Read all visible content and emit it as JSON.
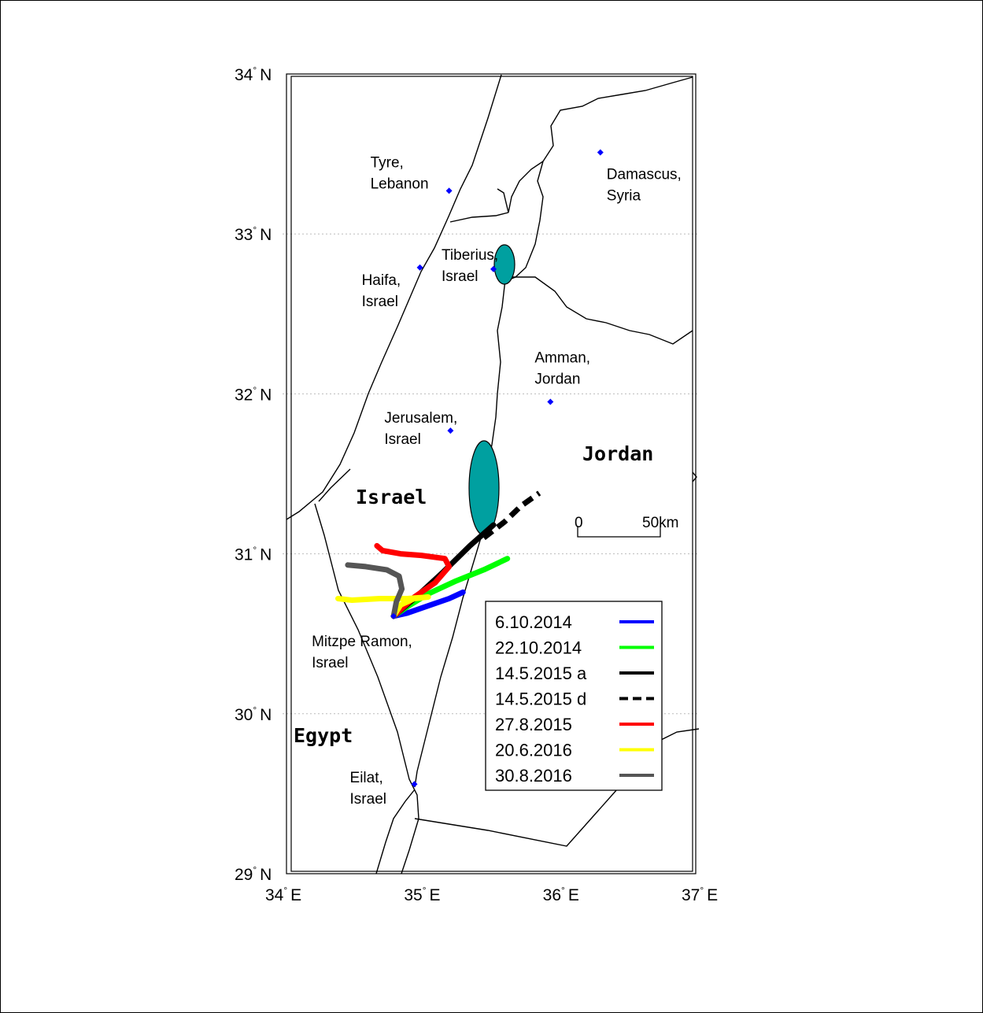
{
  "map": {
    "lat_range": [
      29,
      34
    ],
    "lon_range": [
      34,
      37
    ],
    "grid": "dotted",
    "lat_ticks": [
      {
        "deg": "34",
        "hemi": "N"
      },
      {
        "deg": "33",
        "hemi": "N"
      },
      {
        "deg": "32",
        "hemi": "N"
      },
      {
        "deg": "31",
        "hemi": "N"
      },
      {
        "deg": "30",
        "hemi": "N"
      },
      {
        "deg": "29",
        "hemi": "N"
      }
    ],
    "lon_ticks": [
      {
        "deg": "34",
        "hemi": "E"
      },
      {
        "deg": "35",
        "hemi": "E"
      },
      {
        "deg": "36",
        "hemi": "E"
      },
      {
        "deg": "37",
        "hemi": "E"
      }
    ],
    "countries": {
      "israel": "Israel",
      "jordan": "Jordan",
      "egypt": "Egypt"
    },
    "cities": [
      {
        "name": "Tyre,",
        "name2": "Lebanon",
        "lat": 33.27,
        "lon": 35.2
      },
      {
        "name": "Haifa,",
        "name2": "Israel",
        "lat": 32.79,
        "lon": 34.99
      },
      {
        "name": "Tiberius,",
        "name2": "Israel",
        "lat": 32.78,
        "lon": 35.52
      },
      {
        "name": "Damascus,",
        "name2": "Syria",
        "lat": 33.51,
        "lon": 36.29
      },
      {
        "name": "Amman,",
        "name2": "Jordan",
        "lat": 31.95,
        "lon": 35.93
      },
      {
        "name": "Jerusalem,",
        "name2": "Israel",
        "lat": 31.77,
        "lon": 35.21
      },
      {
        "name": "Mitzpe Ramon,",
        "name2": "Israel",
        "lat": 30.61,
        "lon": 34.8
      },
      {
        "name": "Eilat,",
        "name2": "Israel",
        "lat": 29.56,
        "lon": 34.95
      }
    ],
    "scale_bar": {
      "start_label": "0",
      "end_label": "50km"
    },
    "marker_color": "#0000ff",
    "lake_color": "#00a0a0"
  },
  "legend": {
    "items": [
      {
        "label": "6.10.2014",
        "color": "#0000ff",
        "dash": false
      },
      {
        "label": "22.10.2014",
        "color": "#00ff00",
        "dash": false
      },
      {
        "label": "14.5.2015 a",
        "color": "#000000",
        "dash": false
      },
      {
        "label": "14.5.2015 d",
        "color": "#000000",
        "dash": true
      },
      {
        "label": "27.8.2015",
        "color": "#ff0000",
        "dash": false
      },
      {
        "label": "20.6.2016",
        "color": "#ffff00",
        "dash": false
      },
      {
        "label": "30.8.2016",
        "color": "#555555",
        "dash": false
      }
    ]
  },
  "tracks": [
    {
      "name": "6.10.2014",
      "color": "#0000ff",
      "dash": false,
      "points": [
        [
          30.61,
          34.8
        ],
        [
          30.63,
          34.9
        ],
        [
          30.66,
          35.0
        ],
        [
          30.69,
          35.1
        ],
        [
          30.72,
          35.2
        ],
        [
          30.76,
          35.3
        ]
      ]
    },
    {
      "name": "22.10.2014",
      "color": "#00ff00",
      "dash": false,
      "points": [
        [
          30.61,
          34.8
        ],
        [
          30.67,
          34.9
        ],
        [
          30.75,
          35.05
        ],
        [
          30.83,
          35.25
        ],
        [
          30.9,
          35.45
        ],
        [
          30.97,
          35.62
        ]
      ]
    },
    {
      "name": "14.5.2015 a",
      "color": "#000000",
      "dash": false,
      "points": [
        [
          30.61,
          34.8
        ],
        [
          30.72,
          34.95
        ],
        [
          30.88,
          35.15
        ],
        [
          31.05,
          35.35
        ],
        [
          31.18,
          35.52
        ]
      ]
    },
    {
      "name": "14.5.2015 d",
      "color": "#000000",
      "dash": true,
      "points": [
        [
          31.1,
          35.45
        ],
        [
          31.2,
          35.6
        ],
        [
          31.3,
          35.72
        ],
        [
          31.38,
          35.85
        ]
      ]
    },
    {
      "name": "27.8.2015",
      "color": "#ff0000",
      "dash": false,
      "points": [
        [
          30.61,
          34.8
        ],
        [
          30.73,
          34.95
        ],
        [
          30.82,
          35.1
        ],
        [
          30.92,
          35.2
        ],
        [
          30.97,
          35.17
        ],
        [
          30.99,
          35.0
        ],
        [
          31.0,
          34.85
        ],
        [
          31.02,
          34.72
        ],
        [
          31.05,
          34.68
        ]
      ]
    },
    {
      "name": "20.6.2016",
      "color": "#ffff00",
      "dash": false,
      "points": [
        [
          30.61,
          34.8
        ],
        [
          30.68,
          34.85
        ],
        [
          30.72,
          34.95
        ],
        [
          30.73,
          35.05
        ],
        [
          30.72,
          34.9
        ],
        [
          30.72,
          34.7
        ],
        [
          30.71,
          34.5
        ],
        [
          30.72,
          34.4
        ]
      ]
    },
    {
      "name": "30.8.2016",
      "color": "#555555",
      "dash": false,
      "points": [
        [
          30.61,
          34.8
        ],
        [
          30.7,
          34.82
        ],
        [
          30.78,
          34.86
        ],
        [
          30.86,
          34.84
        ],
        [
          30.9,
          34.75
        ],
        [
          30.92,
          34.6
        ],
        [
          30.93,
          34.47
        ]
      ]
    }
  ]
}
